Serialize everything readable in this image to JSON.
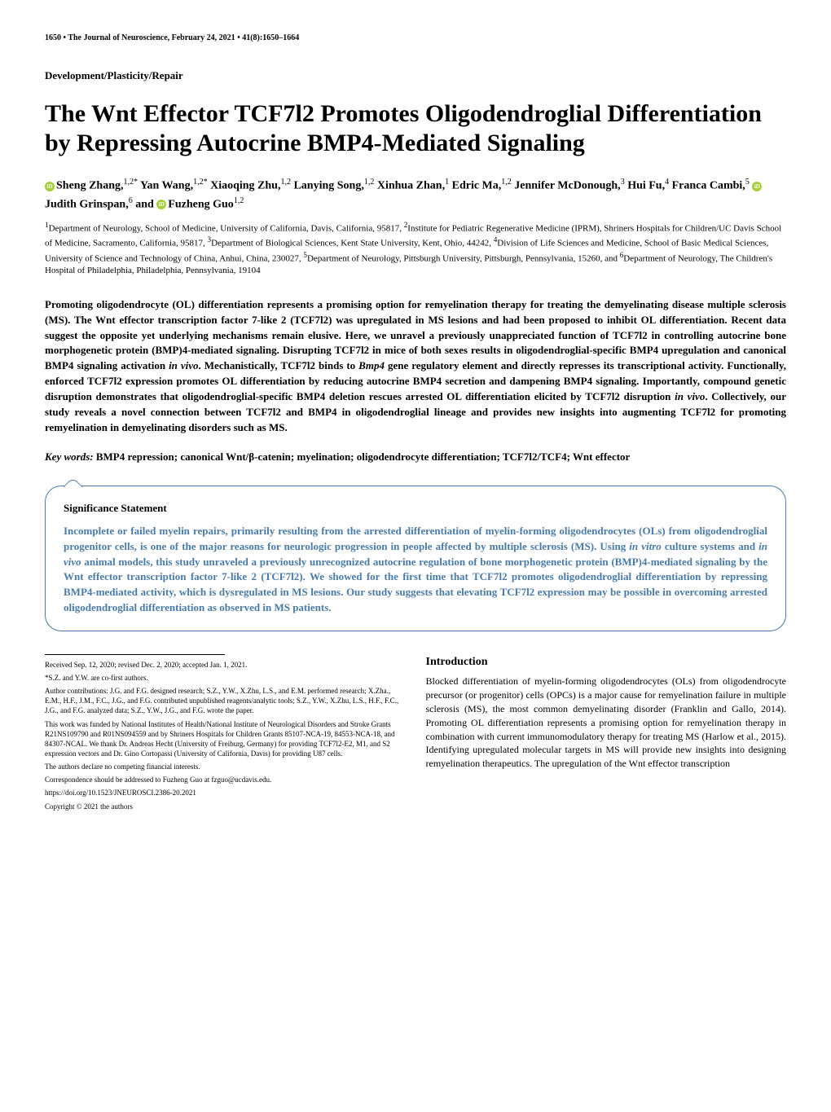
{
  "header": {
    "page_number": "1650",
    "journal_info": "The Journal of Neuroscience, February 24, 2021",
    "volume_info": "41(8):1650–1664"
  },
  "section_label": "Development/Plasticity/Repair",
  "title": "The Wnt Effector TCF7l2 Promotes Oligodendroglial Differentiation by Repressing Autocrine BMP4-Mediated Signaling",
  "authors_html": "<span class='orcid'></span>Sheng Zhang,<sup>1,2*</sup> Yan Wang,<sup>1,2*</sup> Xiaoqing Zhu,<sup>1,2</sup> Lanying Song,<sup>1,2</sup> Xinhua Zhan,<sup>1</sup> Edric Ma,<sup>1,2</sup> Jennifer McDonough,<sup>3</sup> Hui Fu,<sup>4</sup> Franca Cambi,<sup>5</sup> <span class='orcid'></span>Judith Grinspan,<sup>6</sup> and <span class='orcid'></span>Fuzheng Guo<sup>1,2</sup>",
  "affiliations": "<sup>1</sup>Department of Neurology, School of Medicine, University of California, Davis, California, 95817, <sup>2</sup>Institute for Pediatric Regenerative Medicine (IPRM), Shriners Hospitals for Children/UC Davis School of Medicine, Sacramento, California, 95817, <sup>3</sup>Department of Biological Sciences, Kent State University, Kent, Ohio, 44242, <sup>4</sup>Division of Life Sciences and Medicine, School of Basic Medical Sciences, University of Science and Technology of China, Anhui, China, 230027, <sup>5</sup>Department of Neurology, Pittsburgh University, Pittsburgh, Pennsylvania, 15260, and <sup>6</sup>Department of Neurology, The Children's Hospital of Philadelphia, Philadelphia, Pennsylvania, 19104",
  "abstract": "Promoting oligodendrocyte (OL) differentiation represents a promising option for remyelination therapy for treating the demyelinating disease multiple sclerosis (MS). The Wnt effector transcription factor 7-like 2 (TCF7l2) was upregulated in MS lesions and had been proposed to inhibit OL differentiation. Recent data suggest the opposite yet underlying mechanisms remain elusive. Here, we unravel a previously unappreciated function of TCF7l2 in controlling autocrine bone morphogenetic protein (BMP)4-mediated signaling. Disrupting TCF7l2 in mice of both sexes results in oligodendroglial-specific BMP4 upregulation and canonical BMP4 signaling activation <span class='italic'>in vivo</span>. Mechanistically, TCF7l2 binds to <span class='italic'>Bmp4</span> gene regulatory element and directly represses its transcriptional activity. Functionally, enforced TCF7l2 expression promotes OL differentiation by reducing autocrine BMP4 secretion and dampening BMP4 signaling. Importantly, compound genetic disruption demonstrates that oligodendroglial-specific BMP4 deletion rescues arrested OL differentiation elicited by TCF7l2 disruption <span class='italic'>in vivo</span>. Collectively, our study reveals a novel connection between TCF7l2 and BMP4 in oligodendroglial lineage and provides new insights into augmenting TCF7l2 for promoting remyelination in demyelinating disorders such as MS.",
  "keywords": {
    "label": "Key words:",
    "content": "BMP4 repression; canonical Wnt/β-catenin; myelination; oligodendrocyte differentiation; TCF7l2/TCF4; Wnt effector"
  },
  "significance": {
    "title": "Significance Statement",
    "text": "Incomplete or failed myelin repairs, primarily resulting from the arrested differentiation of myelin-forming oligodendrocytes (OLs) from oligodendroglial progenitor cells, is one of the major reasons for neurologic progression in people affected by multiple sclerosis (MS). Using <span class='italic'>in vitro</span> culture systems and <span class='italic'>in vivo</span> animal models, this study unraveled a previously unrecognized autocrine regulation of bone morphogenetic protein (BMP)4-mediated signaling by the Wnt effector transcription factor 7-like 2 (TCF7l2). We showed for the first time that TCF7l2 promotes oligodendroglial differentiation by repressing BMP4-mediated activity, which is dysregulated in MS lesions. Our study suggests that elevating TCF7l2 expression may be possible in overcoming arrested oligodendroglial differentiation as observed in MS patients."
  },
  "left_column": {
    "received": "Received Sep. 12, 2020; revised Dec. 2, 2020; accepted Jan. 1, 2021.",
    "cofirst": "*S.Z. and Y.W. are co-first authors.",
    "contributions": "Author contributions: J.G. and F.G. designed research; S.Z., Y.W., X.Zhu, L.S., and E.M. performed research; X.Zha., E.M., H.F., J.M., F.C., J.G., and F.G. contributed unpublished reagents/analytic tools; S.Z., Y.W., X.Zhu, L.S., H.F., F.C., J.G., and F.G. analyzed data; S.Z., Y.W., J.G., and F.G. wrote the paper.",
    "funding": "This work was funded by National Institutes of Health/National Institute of Neurological Disorders and Stroke Grants R21NS109790 and R01NS094559 and by Shriners Hospitals for Children Grants 85107-NCA-19, 84553-NCA-18, and 84307-NCAL. We thank Dr. Andreas Hecht (University of Freiburg, Germany) for providing TCF7l2-E2, M1, and S2 expression vectors and Dr. Gino Cortopassi (University of California, Davis) for providing U87 cells.",
    "competing": "The authors declare no competing financial interests.",
    "correspondence": "Correspondence should be addressed to Fuzheng Guo at fzguo@ucdavis.edu.",
    "doi": "https://doi.org/10.1523/JNEUROSCI.2386-20.2021",
    "copyright": "Copyright © 2021 the authors"
  },
  "introduction": {
    "heading": "Introduction",
    "text": "Blocked differentiation of myelin-forming oligodendrocytes (OLs) from oligodendrocyte precursor (or progenitor) cells (OPCs) is a major cause for remyelination failure in multiple sclerosis (MS), the most common demyelinating disorder (Franklin and Gallo, 2014). Promoting OL differentiation represents a promising option for remyelination therapy in combination with current immunomodulatory therapy for treating MS (Harlow et al., 2015). Identifying upregulated molecular targets in MS will provide new insights into designing remyelination therapeutics. The upregulation of the Wnt effector transcription"
  },
  "colors": {
    "significance_border": "#4a7ba6",
    "significance_text": "#4a7ba6",
    "orcid_green": "#a6ce39"
  }
}
